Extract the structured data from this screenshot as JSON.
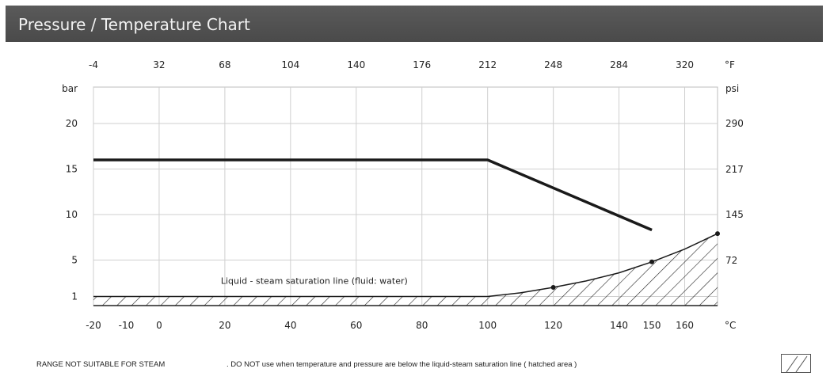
{
  "header": {
    "title": "Pressure / Temperature Chart"
  },
  "chart_data": {
    "type": "line",
    "x_axis": {
      "label": "°C",
      "ticks": [
        -20,
        -10,
        0,
        20,
        40,
        60,
        80,
        100,
        120,
        140,
        150,
        160
      ],
      "range": [
        -20,
        170
      ]
    },
    "x2_axis": {
      "label": "°F",
      "ticks": [
        -4,
        32,
        68,
        104,
        140,
        176,
        212,
        248,
        284,
        320
      ]
    },
    "y_axis": {
      "label": "bar",
      "ticks": [
        1,
        5,
        10,
        15,
        20
      ],
      "range": [
        0,
        24
      ]
    },
    "y2_axis": {
      "label": "psi",
      "ticks": [
        72,
        145,
        217,
        290
      ]
    },
    "grid": true,
    "series": [
      {
        "points": [
          [
            -20,
            16
          ],
          [
            100,
            16
          ],
          [
            150,
            8.3
          ]
        ],
        "color": "#1a1a1a"
      },
      {
        "name": "Liquid - steam saturation line (fluid: water)",
        "points": [
          [
            -20,
            1
          ],
          [
            100,
            1
          ],
          [
            110,
            1.4
          ],
          [
            120,
            2.0
          ],
          [
            130,
            2.7
          ],
          [
            140,
            3.6
          ],
          [
            150,
            4.8
          ],
          [
            160,
            6.2
          ],
          [
            170,
            7.9
          ]
        ],
        "markers": [
          [
            120,
            2.0
          ],
          [
            150,
            4.8
          ],
          [
            170,
            7.9
          ]
        ],
        "hatched_below": true,
        "color": "#1a1a1a"
      }
    ]
  },
  "footer": {
    "range_label": "RANGE NOT SUITABLE FOR STEAM",
    "warning": ". DO NOT use when temperature and pressure are below the liquid-steam saturation line ( hatched area )"
  }
}
